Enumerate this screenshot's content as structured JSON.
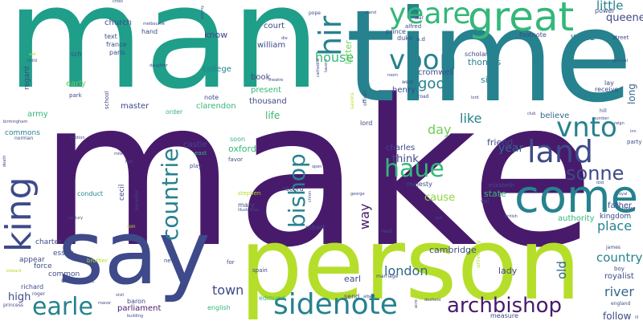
{
  "palette": {
    "dark_purple": "#481a6c",
    "indigo": "#3e4a89",
    "blue": "#31688e",
    "teal": "#26828e",
    "green": "#1f9e89",
    "mint": "#35b779",
    "lime": "#6ece58",
    "yellow_green": "#b5de2b",
    "light_green": "#90d743",
    "yellow": "#fde725"
  },
  "words": [
    {
      "text": "make",
      "color": "#481a6c"
    },
    {
      "text": "man",
      "color": "#1f9e89"
    },
    {
      "text": "time",
      "color": "#26828e"
    },
    {
      "text": "person",
      "color": "#b5de2b"
    },
    {
      "text": "say",
      "color": "#3e4a89"
    },
    {
      "text": "great",
      "color": "#35b779"
    },
    {
      "text": "come",
      "color": "#26828e"
    },
    {
      "text": "king",
      "color": "#3e4a89"
    },
    {
      "text": "land",
      "color": "#3e4a89"
    },
    {
      "text": "sidenote",
      "color": "#26828e"
    },
    {
      "text": "archbishop",
      "color": "#481a6c"
    },
    {
      "text": "yeare",
      "color": "#35b779"
    },
    {
      "text": "vpon",
      "color": "#26828e"
    },
    {
      "text": "hir",
      "color": "#26828e"
    },
    {
      "text": "vnto",
      "color": "#26828e"
    },
    {
      "text": "haue",
      "color": "#35b779"
    },
    {
      "text": "sonne",
      "color": "#3e4a89"
    },
    {
      "text": "bishop",
      "color": "#26828e"
    },
    {
      "text": "countrie",
      "color": "#26828e"
    },
    {
      "text": "earle",
      "color": "#26828e"
    },
    {
      "text": "good",
      "color": "#26828e"
    },
    {
      "text": "house",
      "color": "#35b779"
    },
    {
      "text": "place",
      "color": "#26828e"
    },
    {
      "text": "river",
      "color": "#31688e"
    },
    {
      "text": "country",
      "color": "#26828e"
    },
    {
      "text": "london",
      "color": "#31688e"
    },
    {
      "text": "town",
      "color": "#3e4a89"
    },
    {
      "text": "like",
      "color": "#26828e"
    },
    {
      "text": "day",
      "color": "#6ece58"
    },
    {
      "text": "year",
      "color": "#31688e"
    },
    {
      "text": "little",
      "color": "#26828e"
    },
    {
      "text": "queene",
      "color": "#3e4a89"
    },
    {
      "text": "way",
      "color": "#481a6c"
    },
    {
      "text": "cause",
      "color": "#90d743"
    },
    {
      "text": "think",
      "color": "#3e4a89"
    },
    {
      "text": "friend",
      "color": "#3e4a89"
    },
    {
      "text": "old",
      "color": "#31688e"
    },
    {
      "text": "follow",
      "color": "#3e4a89"
    },
    {
      "text": "write",
      "color": "#26828e"
    },
    {
      "text": "long",
      "color": "#31688e"
    },
    {
      "text": "high",
      "color": "#3e4a89"
    },
    {
      "text": "know",
      "color": "#3e4a89"
    },
    {
      "text": "letter",
      "color": "#6ece58"
    },
    {
      "text": "cambridge",
      "color": "#3e4a89"
    },
    {
      "text": "thomas",
      "color": "#26828e"
    },
    {
      "text": "sir",
      "color": "#26828e"
    },
    {
      "text": "life",
      "color": "#35b779"
    },
    {
      "text": "oxford",
      "color": "#35b779"
    },
    {
      "text": "state",
      "color": "#35b779"
    },
    {
      "text": "lady",
      "color": "#3e4a89"
    },
    {
      "text": "parliament",
      "color": "#481a6c"
    },
    {
      "text": "master",
      "color": "#3e4a89"
    },
    {
      "text": "clarendon",
      "color": "#35b779"
    },
    {
      "text": "believe",
      "color": "#31688e"
    },
    {
      "text": "father",
      "color": "#3e4a89"
    },
    {
      "text": "kingdom",
      "color": "#3e4a89"
    },
    {
      "text": "authority",
      "color": "#35b779"
    },
    {
      "text": "royalist",
      "color": "#3e4a89"
    },
    {
      "text": "earl",
      "color": "#3e4a89"
    },
    {
      "text": "charles",
      "color": "#3e4a89"
    },
    {
      "text": "cromwell",
      "color": "#3e4a89"
    },
    {
      "text": "henry",
      "color": "#3e4a89"
    },
    {
      "text": "william",
      "color": "#3e4a89"
    },
    {
      "text": "church",
      "color": "#3e4a89"
    },
    {
      "text": "college",
      "color": "#26828e"
    },
    {
      "text": "thousand",
      "color": "#3e4a89"
    },
    {
      "text": "present",
      "color": "#35b779"
    },
    {
      "text": "court",
      "color": "#3e4a89"
    },
    {
      "text": "book",
      "color": "#3e4a89"
    },
    {
      "text": "army",
      "color": "#35b779"
    },
    {
      "text": "early",
      "color": "#6ece58"
    },
    {
      "text": "commons",
      "color": "#26828e"
    },
    {
      "text": "conduct",
      "color": "#26828e"
    },
    {
      "text": "castle",
      "color": "#3e4a89"
    },
    {
      "text": "essex",
      "color": "#3e4a89"
    },
    {
      "text": "force",
      "color": "#3e4a89"
    },
    {
      "text": "appear",
      "color": "#3e4a89"
    },
    {
      "text": "charter",
      "color": "#3e4a89"
    },
    {
      "text": "common",
      "color": "#3e4a89"
    },
    {
      "text": "conquest",
      "color": "#3e4a89"
    },
    {
      "text": "edmund",
      "color": "#35b779"
    },
    {
      "text": "baron",
      "color": "#3e4a89"
    },
    {
      "text": "english",
      "color": "#35b779"
    },
    {
      "text": "richard",
      "color": "#3e4a89"
    },
    {
      "text": "princess",
      "color": "#3e4a89"
    },
    {
      "text": "regard",
      "color": "#3e4a89"
    },
    {
      "text": "cecil",
      "color": "#3e4a89"
    },
    {
      "text": "mary",
      "color": "#3e4a89"
    },
    {
      "text": "stephen",
      "color": "#b5de2b"
    },
    {
      "text": "robert",
      "color": "#3e4a89"
    },
    {
      "text": "record",
      "color": "#3e4a89"
    },
    {
      "text": "elizabeth",
      "color": "#3e4a89"
    },
    {
      "text": "majesty",
      "color": "#3e4a89"
    },
    {
      "text": "send",
      "color": "#3e4a89"
    },
    {
      "text": "measure",
      "color": "#3e4a89"
    },
    {
      "text": "university",
      "color": "#b5de2b"
    },
    {
      "text": "hand",
      "color": "#3e4a89"
    },
    {
      "text": "text",
      "color": "#3e4a89"
    },
    {
      "text": "france",
      "color": "#3e4a89"
    },
    {
      "text": "paris",
      "color": "#3e4a89"
    },
    {
      "text": "sch",
      "color": "#3e4a89"
    },
    {
      "text": "prince",
      "color": "#3e4a89"
    },
    {
      "text": "duke",
      "color": "#3e4a89"
    },
    {
      "text": "alfred",
      "color": "#3e4a89"
    },
    {
      "text": "scholar",
      "color": "#3e4a89"
    },
    {
      "text": "footnote",
      "color": "#3e4a89"
    },
    {
      "text": "power",
      "color": "#3e4a89"
    },
    {
      "text": "receive",
      "color": "#3e4a89"
    },
    {
      "text": "lay",
      "color": "#3e4a89"
    },
    {
      "text": "street",
      "color": "#3e4a89"
    },
    {
      "text": "party",
      "color": "#3e4a89"
    },
    {
      "text": "lord",
      "color": "#3e4a89"
    },
    {
      "text": "order",
      "color": "#35b779"
    },
    {
      "text": "note",
      "color": "#3e4a89"
    },
    {
      "text": "park",
      "color": "#3e4a89"
    },
    {
      "text": "school",
      "color": "#3e4a89"
    },
    {
      "text": "soon",
      "color": "#35b779"
    },
    {
      "text": "favor",
      "color": "#3e4a89"
    },
    {
      "text": "east",
      "color": "#35b779"
    },
    {
      "text": "play",
      "color": "#3e4a89"
    },
    {
      "text": "spain",
      "color": "#3e4a89"
    },
    {
      "text": "new",
      "color": "#3e4a89"
    },
    {
      "text": "for",
      "color": "#3e4a89"
    },
    {
      "text": "boy",
      "color": "#3e4a89"
    },
    {
      "text": "england",
      "color": "#3e4a89"
    },
    {
      "text": "james",
      "color": "#3e4a89"
    },
    {
      "text": "vol",
      "color": "#3e4a89"
    },
    {
      "text": "brother",
      "color": "#b5de2b"
    },
    {
      "text": "marriage",
      "color": "#3e4a89"
    },
    {
      "text": "read",
      "color": "#3e4a89"
    },
    {
      "text": "west",
      "color": "#3e4a89"
    },
    {
      "text": "road",
      "color": "#3e4a89"
    },
    {
      "text": "war",
      "color": "#3e4a89"
    },
    {
      "text": "pope",
      "color": "#3e4a89"
    },
    {
      "text": "stand",
      "color": "#3e4a89"
    },
    {
      "text": "cross",
      "color": "#3e4a89"
    },
    {
      "text": "melbourne",
      "color": "#3e4a89"
    },
    {
      "text": "enemy",
      "color": "#3e4a89"
    },
    {
      "text": "die",
      "color": "#3e4a89"
    },
    {
      "text": "daughter",
      "color": "#3e4a89"
    },
    {
      "text": "theatre",
      "color": "#3e4a89"
    },
    {
      "text": "officer",
      "color": "#3e4a89"
    },
    {
      "text": "saxons",
      "color": "#b5de2b"
    },
    {
      "text": "albert",
      "color": "#3e4a89"
    },
    {
      "text": "duchess",
      "color": "#3e4a89"
    },
    {
      "text": "british",
      "color": "#3e4a89"
    },
    {
      "text": "george",
      "color": "#3e4a89"
    },
    {
      "text": "chron",
      "color": "#3e4a89"
    },
    {
      "text": "open",
      "color": "#3e4a89"
    },
    {
      "text": "illustration",
      "color": "#3e4a89"
    },
    {
      "text": "hill",
      "color": "#3e4a89"
    },
    {
      "text": "club",
      "color": "#3e4a89"
    },
    {
      "text": "number",
      "color": "#3e4a89"
    },
    {
      "text": "reign",
      "color": "#3e4a89"
    },
    {
      "text": "motion",
      "color": "#3e4a89"
    },
    {
      "text": "mile",
      "color": "#3e4a89"
    },
    {
      "text": "hall",
      "color": "#3e4a89"
    },
    {
      "text": "leicester",
      "color": "#3e4a89"
    },
    {
      "text": "birmingham",
      "color": "#3e4a89"
    },
    {
      "text": "norman",
      "color": "#3e4a89"
    },
    {
      "text": "death",
      "color": "#3e4a89"
    },
    {
      "text": "roger",
      "color": "#3e4a89"
    },
    {
      "text": "edward",
      "color": "#b5de2b"
    },
    {
      "text": "manor",
      "color": "#3e4a89"
    },
    {
      "text": "visit",
      "color": "#3e4a89"
    },
    {
      "text": "building",
      "color": "#3e4a89"
    },
    {
      "text": "general",
      "color": "#3e4a89"
    },
    {
      "text": "royal",
      "color": "#3e4a89"
    },
    {
      "text": "palace",
      "color": "#3e4a89"
    },
    {
      "text": "act",
      "color": "#3e4a89"
    },
    {
      "text": "acre",
      "color": "#3e4a89"
    },
    {
      "text": "child",
      "color": "#3e4a89"
    },
    {
      "text": "ask",
      "color": "#b5de2b"
    },
    {
      "text": "room",
      "color": "#3e4a89"
    },
    {
      "text": "ill",
      "color": "#3e4a89"
    },
    {
      "text": "ibid",
      "color": "#3e4a89"
    },
    {
      "text": "inn",
      "color": "#3e4a89"
    },
    {
      "text": "century",
      "color": "#3e4a89"
    },
    {
      "text": "son",
      "color": "#b5de2b"
    },
    {
      "text": "cathedral",
      "color": "#3e4a89"
    },
    {
      "text": "a.d",
      "color": "#3e4a89"
    },
    {
      "text": "tavern",
      "color": "#3e4a89"
    },
    {
      "text": "lord",
      "color": "#3e4a89"
    }
  ]
}
